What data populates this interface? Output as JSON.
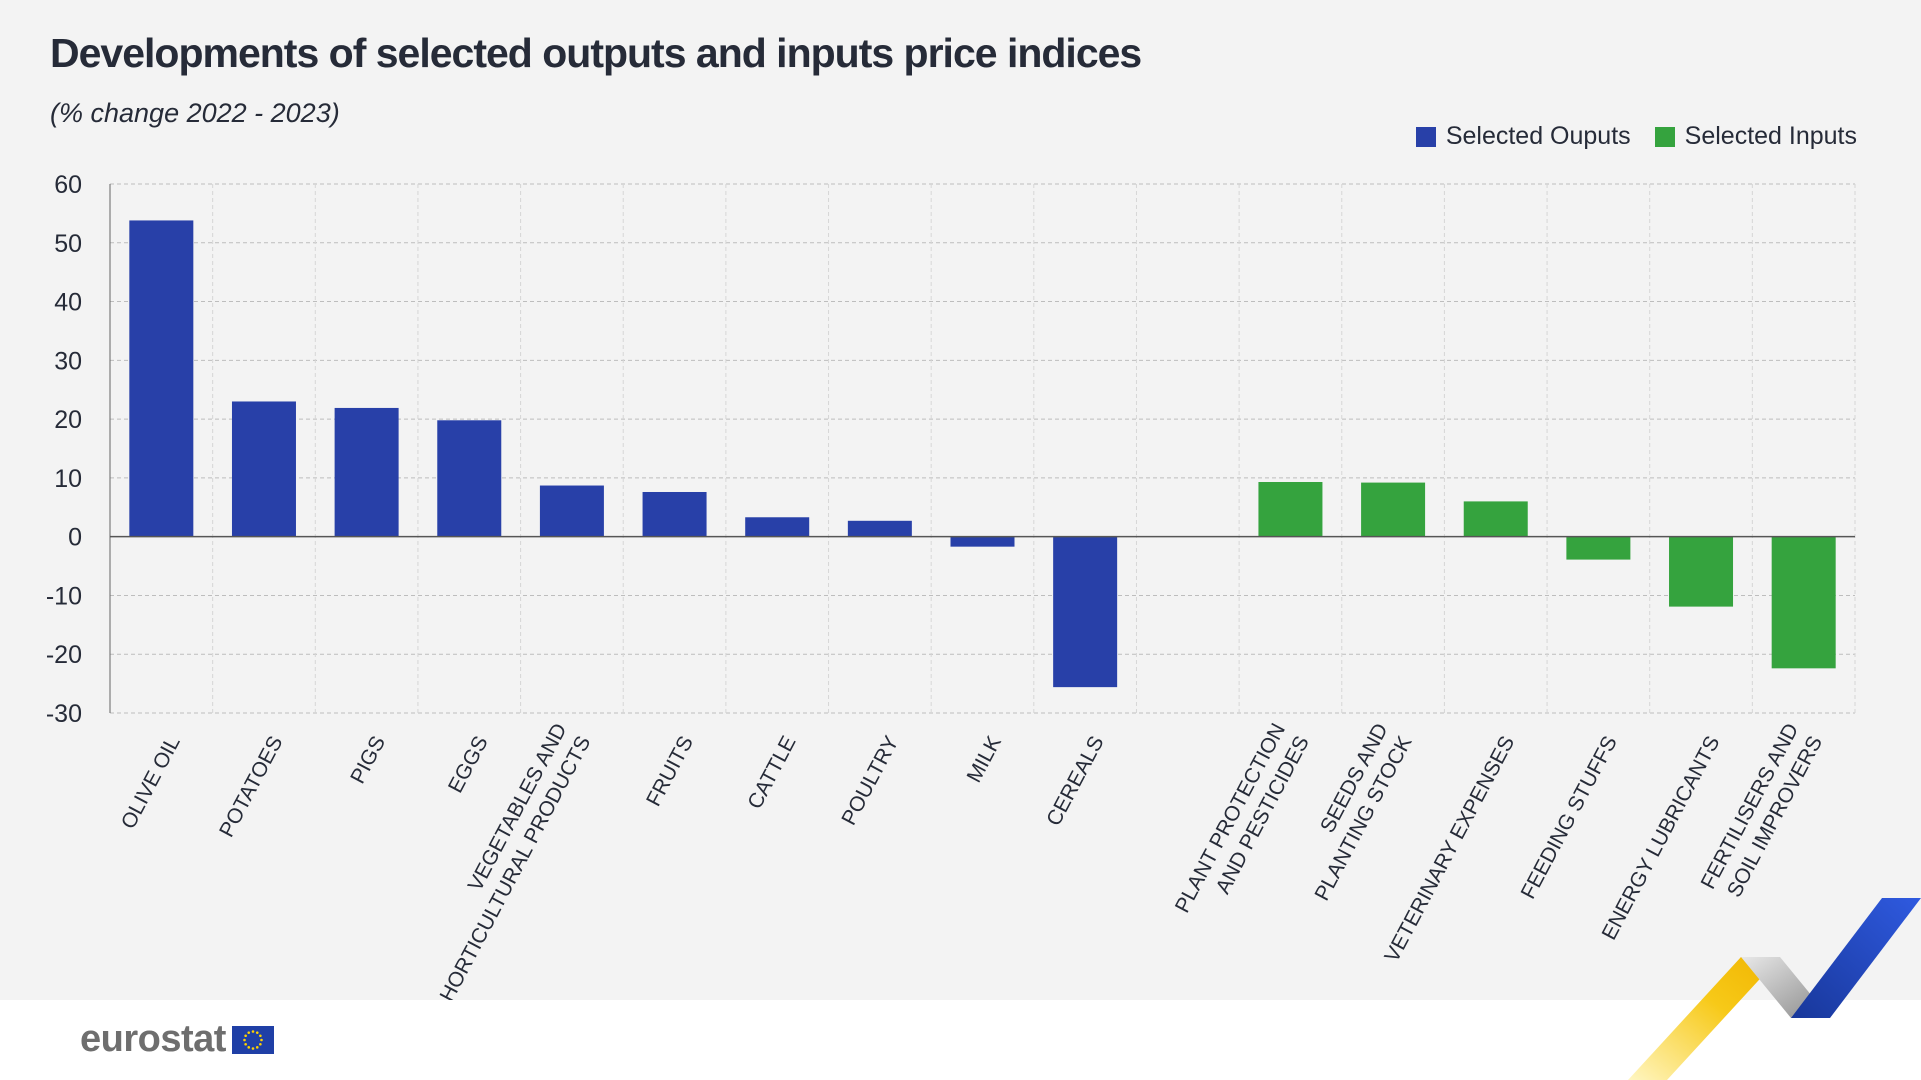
{
  "title": "Developments of selected outputs and inputs price indices",
  "subtitle": "(% change 2022 - 2023)",
  "brand": {
    "logo_text": "eurostat",
    "flag_icon": "eu-flag-icon"
  },
  "colors": {
    "outputs": "#2840a8",
    "inputs": "#35a33e",
    "panel_bg": "#f3f3f3",
    "grid": "#bdbdbd",
    "zero_line": "#555555"
  },
  "chart_data": {
    "type": "bar",
    "title": "Developments of selected outputs and inputs price indices",
    "subtitle": "(% change 2022 - 2023)",
    "xlabel": "",
    "ylabel": "",
    "ylim": [
      -30,
      60
    ],
    "yticks": [
      60,
      50,
      40,
      30,
      20,
      10,
      0,
      -10,
      -20,
      -30
    ],
    "grid": true,
    "legend": "top-right",
    "categories": [
      "OLIVE OIL",
      "POTATOES",
      "PIGS",
      "EGGS",
      "VEGETABLES AND HORTICULTURAL PRODUCTS",
      "FRUITS",
      "CATTLE",
      "POULTRY",
      "MILK",
      "CEREALS",
      "",
      "PLANT PROTECTION AND PESTICIDES",
      "SEEDS AND PLANTING STOCK",
      "VETERINARY EXPENSES",
      "FEEDING STUFFS",
      "ENERGY LUBRICANTS",
      "FERTILISERS AND SOIL IMPROVERS"
    ],
    "category_label_lines": [
      [
        "OLIVE OIL"
      ],
      [
        "POTATOES"
      ],
      [
        "PIGS"
      ],
      [
        "EGGS"
      ],
      [
        "VEGETABLES AND",
        "HORTICULTURAL PRODUCTS"
      ],
      [
        "FRUITS"
      ],
      [
        "CATTLE"
      ],
      [
        "POULTRY"
      ],
      [
        "MILK"
      ],
      [
        "CEREALS"
      ],
      [],
      [
        "PLANT PROTECTION",
        "AND PESTICIDES"
      ],
      [
        "SEEDS AND",
        "PLANTING STOCK"
      ],
      [
        "VETERINARY EXPENSES"
      ],
      [
        "FEEDING STUFFS"
      ],
      [
        "ENERGY LUBRICANTS"
      ],
      [
        "FERTILISERS AND",
        "SOIL IMPROVERS"
      ]
    ],
    "series": [
      {
        "name": "Selected Ouputs",
        "color": "#2840a8",
        "values": [
          53.8,
          23.0,
          21.9,
          19.8,
          8.7,
          7.6,
          3.3,
          2.7,
          -1.7,
          -25.6,
          null,
          null,
          null,
          null,
          null,
          null,
          null
        ]
      },
      {
        "name": "Selected Inputs",
        "color": "#35a33e",
        "values": [
          null,
          null,
          null,
          null,
          null,
          null,
          null,
          null,
          null,
          null,
          null,
          9.3,
          9.2,
          6.0,
          -3.9,
          -11.9,
          -22.4
        ]
      }
    ]
  }
}
